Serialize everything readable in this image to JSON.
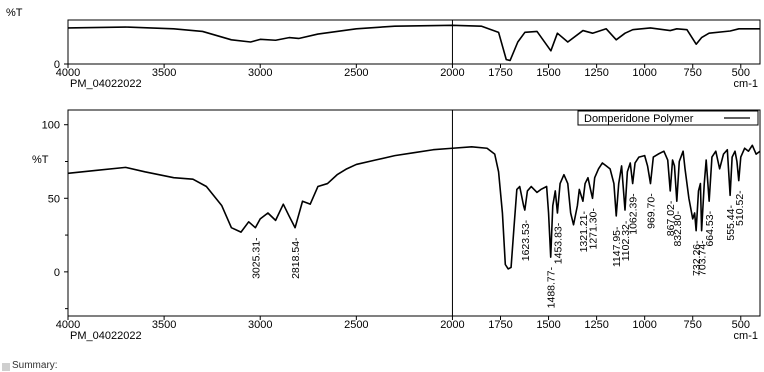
{
  "chart_data": [
    {
      "type": "line",
      "title": "",
      "ylabel": "%T",
      "xlabel": "cm-1",
      "sample_name": "PM_04022022",
      "x_reversed": true,
      "xlim": [
        4000,
        400
      ],
      "ylim": [
        0,
        100
      ],
      "x_ticks": [
        4000,
        3500,
        3000,
        2500,
        2000,
        1750,
        1500,
        1250,
        1000,
        750,
        500
      ],
      "y_ticks": [
        0
      ],
      "y_tick_labels": [
        "0"
      ],
      "grid": false,
      "series": [
        {
          "name": "",
          "color": "#000000",
          "points": [
            [
              4000,
              82
            ],
            [
              3700,
              84
            ],
            [
              3450,
              80
            ],
            [
              3300,
              74
            ],
            [
              3150,
              55
            ],
            [
              3050,
              50
            ],
            [
              3000,
              56
            ],
            [
              2920,
              54
            ],
            [
              2850,
              60
            ],
            [
              2800,
              58
            ],
            [
              2700,
              68
            ],
            [
              2500,
              80
            ],
            [
              2300,
              86
            ],
            [
              2000,
              88
            ],
            [
              1850,
              86
            ],
            [
              1760,
              72
            ],
            [
              1720,
              10
            ],
            [
              1700,
              8
            ],
            [
              1660,
              50
            ],
            [
              1623,
              72
            ],
            [
              1560,
              74
            ],
            [
              1488,
              30
            ],
            [
              1454,
              70
            ],
            [
              1400,
              50
            ],
            [
              1321,
              76
            ],
            [
              1271,
              70
            ],
            [
              1200,
              80
            ],
            [
              1148,
              55
            ],
            [
              1102,
              70
            ],
            [
              1062,
              78
            ],
            [
              970,
              82
            ],
            [
              867,
              76
            ],
            [
              833,
              80
            ],
            [
              780,
              78
            ],
            [
              732,
              45
            ],
            [
              704,
              60
            ],
            [
              665,
              70
            ],
            [
              555,
              75
            ],
            [
              510,
              80
            ],
            [
              400,
              80
            ]
          ]
        }
      ]
    },
    {
      "type": "line",
      "title": "",
      "ylabel": "%T",
      "xlabel": "cm-1",
      "sample_name": "PM_04022022",
      "x_reversed": true,
      "xlim": [
        4000,
        400
      ],
      "ylim": [
        -30,
        110
      ],
      "x_ticks": [
        4000,
        3500,
        3000,
        2500,
        2000,
        1750,
        1500,
        1250,
        1000,
        750,
        500
      ],
      "y_ticks": [
        0,
        50,
        100
      ],
      "y_tick_labels": [
        "0",
        "50",
        "100"
      ],
      "grid": false,
      "legend": {
        "position": "top-right",
        "entries": [
          "Domperidone Polymer"
        ]
      },
      "series": [
        {
          "name": "Domperidone Polymer",
          "color": "#000000",
          "points": [
            [
              4000,
              67
            ],
            [
              3850,
              69
            ],
            [
              3700,
              71
            ],
            [
              3600,
              68
            ],
            [
              3450,
              64
            ],
            [
              3350,
              63
            ],
            [
              3280,
              58
            ],
            [
              3200,
              45
            ],
            [
              3150,
              30
            ],
            [
              3100,
              27
            ],
            [
              3060,
              34
            ],
            [
              3025.31,
              30
            ],
            [
              3000,
              36
            ],
            [
              2960,
              40
            ],
            [
              2920,
              35
            ],
            [
              2880,
              46
            ],
            [
              2850,
              38
            ],
            [
              2818.54,
              30
            ],
            [
              2780,
              48
            ],
            [
              2740,
              46
            ],
            [
              2700,
              58
            ],
            [
              2650,
              60
            ],
            [
              2600,
              66
            ],
            [
              2550,
              70
            ],
            [
              2500,
              73
            ],
            [
              2400,
              76
            ],
            [
              2300,
              79
            ],
            [
              2200,
              81
            ],
            [
              2100,
              83
            ],
            [
              2000,
              84
            ],
            [
              1900,
              85
            ],
            [
              1820,
              84
            ],
            [
              1780,
              80
            ],
            [
              1760,
              68
            ],
            [
              1740,
              40
            ],
            [
              1725,
              5
            ],
            [
              1710,
              2
            ],
            [
              1695,
              3
            ],
            [
              1680,
              30
            ],
            [
              1665,
              56
            ],
            [
              1650,
              58
            ],
            [
              1630,
              45
            ],
            [
              1623.53,
              42
            ],
            [
              1610,
              55
            ],
            [
              1590,
              58
            ],
            [
              1560,
              54
            ],
            [
              1540,
              56
            ],
            [
              1510,
              58
            ],
            [
              1500,
              40
            ],
            [
              1488.77,
              10
            ],
            [
              1478,
              45
            ],
            [
              1465,
              55
            ],
            [
              1453.83,
              40
            ],
            [
              1440,
              60
            ],
            [
              1420,
              66
            ],
            [
              1400,
              60
            ],
            [
              1385,
              40
            ],
            [
              1370,
              32
            ],
            [
              1350,
              45
            ],
            [
              1340,
              56
            ],
            [
              1321.21,
              48
            ],
            [
              1310,
              60
            ],
            [
              1295,
              64
            ],
            [
              1280,
              55
            ],
            [
              1271.3,
              50
            ],
            [
              1260,
              64
            ],
            [
              1240,
              70
            ],
            [
              1220,
              74
            ],
            [
              1200,
              72
            ],
            [
              1180,
              70
            ],
            [
              1160,
              60
            ],
            [
              1147.95,
              38
            ],
            [
              1135,
              60
            ],
            [
              1120,
              72
            ],
            [
              1102.32,
              42
            ],
            [
              1090,
              68
            ],
            [
              1075,
              74
            ],
            [
              1062.39,
              60
            ],
            [
              1050,
              74
            ],
            [
              1030,
              78
            ],
            [
              1000,
              79
            ],
            [
              985,
              72
            ],
            [
              969.7,
              60
            ],
            [
              955,
              78
            ],
            [
              930,
              80
            ],
            [
              900,
              82
            ],
            [
              880,
              76
            ],
            [
              867.02,
              55
            ],
            [
              855,
              76
            ],
            [
              845,
              72
            ],
            [
              832.8,
              48
            ],
            [
              820,
              75
            ],
            [
              800,
              82
            ],
            [
              790,
              70
            ],
            [
              770,
              50
            ],
            [
              750,
              36
            ],
            [
              740,
              40
            ],
            [
              732.26,
              28
            ],
            [
              720,
              55
            ],
            [
              710,
              60
            ],
            [
              703.74,
              28
            ],
            [
              690,
              60
            ],
            [
              680,
              76
            ],
            [
              664.53,
              48
            ],
            [
              650,
              78
            ],
            [
              630,
              82
            ],
            [
              610,
              70
            ],
            [
              590,
              80
            ],
            [
              570,
              83
            ],
            [
              555.44,
              52
            ],
            [
              545,
              78
            ],
            [
              530,
              82
            ],
            [
              520,
              75
            ],
            [
              510.52,
              62
            ],
            [
              500,
              78
            ],
            [
              480,
              84
            ],
            [
              460,
              82
            ],
            [
              440,
              86
            ],
            [
              420,
              80
            ],
            [
              400,
              82
            ]
          ]
        }
      ],
      "annotations": [
        {
          "x": 3025.31,
          "label": "3025.31"
        },
        {
          "x": 2818.54,
          "label": "2818.54"
        },
        {
          "x": 1623.53,
          "label": "1623.53"
        },
        {
          "x": 1488.77,
          "label": "1488.77"
        },
        {
          "x": 1453.83,
          "label": "1453.83"
        },
        {
          "x": 1321.21,
          "label": "1321.21"
        },
        {
          "x": 1271.3,
          "label": "1271.30"
        },
        {
          "x": 1147.95,
          "label": "1147.95"
        },
        {
          "x": 1102.32,
          "label": "1102.32"
        },
        {
          "x": 1062.39,
          "label": "1062.39"
        },
        {
          "x": 969.7,
          "label": "969.70"
        },
        {
          "x": 867.02,
          "label": "867.02"
        },
        {
          "x": 832.8,
          "label": "832.80"
        },
        {
          "x": 732.26,
          "label": "732.26"
        },
        {
          "x": 703.74,
          "label": "703.74"
        },
        {
          "x": 664.53,
          "label": "664.53"
        },
        {
          "x": 555.44,
          "label": "555.44"
        },
        {
          "x": 510.52,
          "label": "510.52"
        }
      ]
    }
  ],
  "summary": {
    "label": "Summary:"
  }
}
